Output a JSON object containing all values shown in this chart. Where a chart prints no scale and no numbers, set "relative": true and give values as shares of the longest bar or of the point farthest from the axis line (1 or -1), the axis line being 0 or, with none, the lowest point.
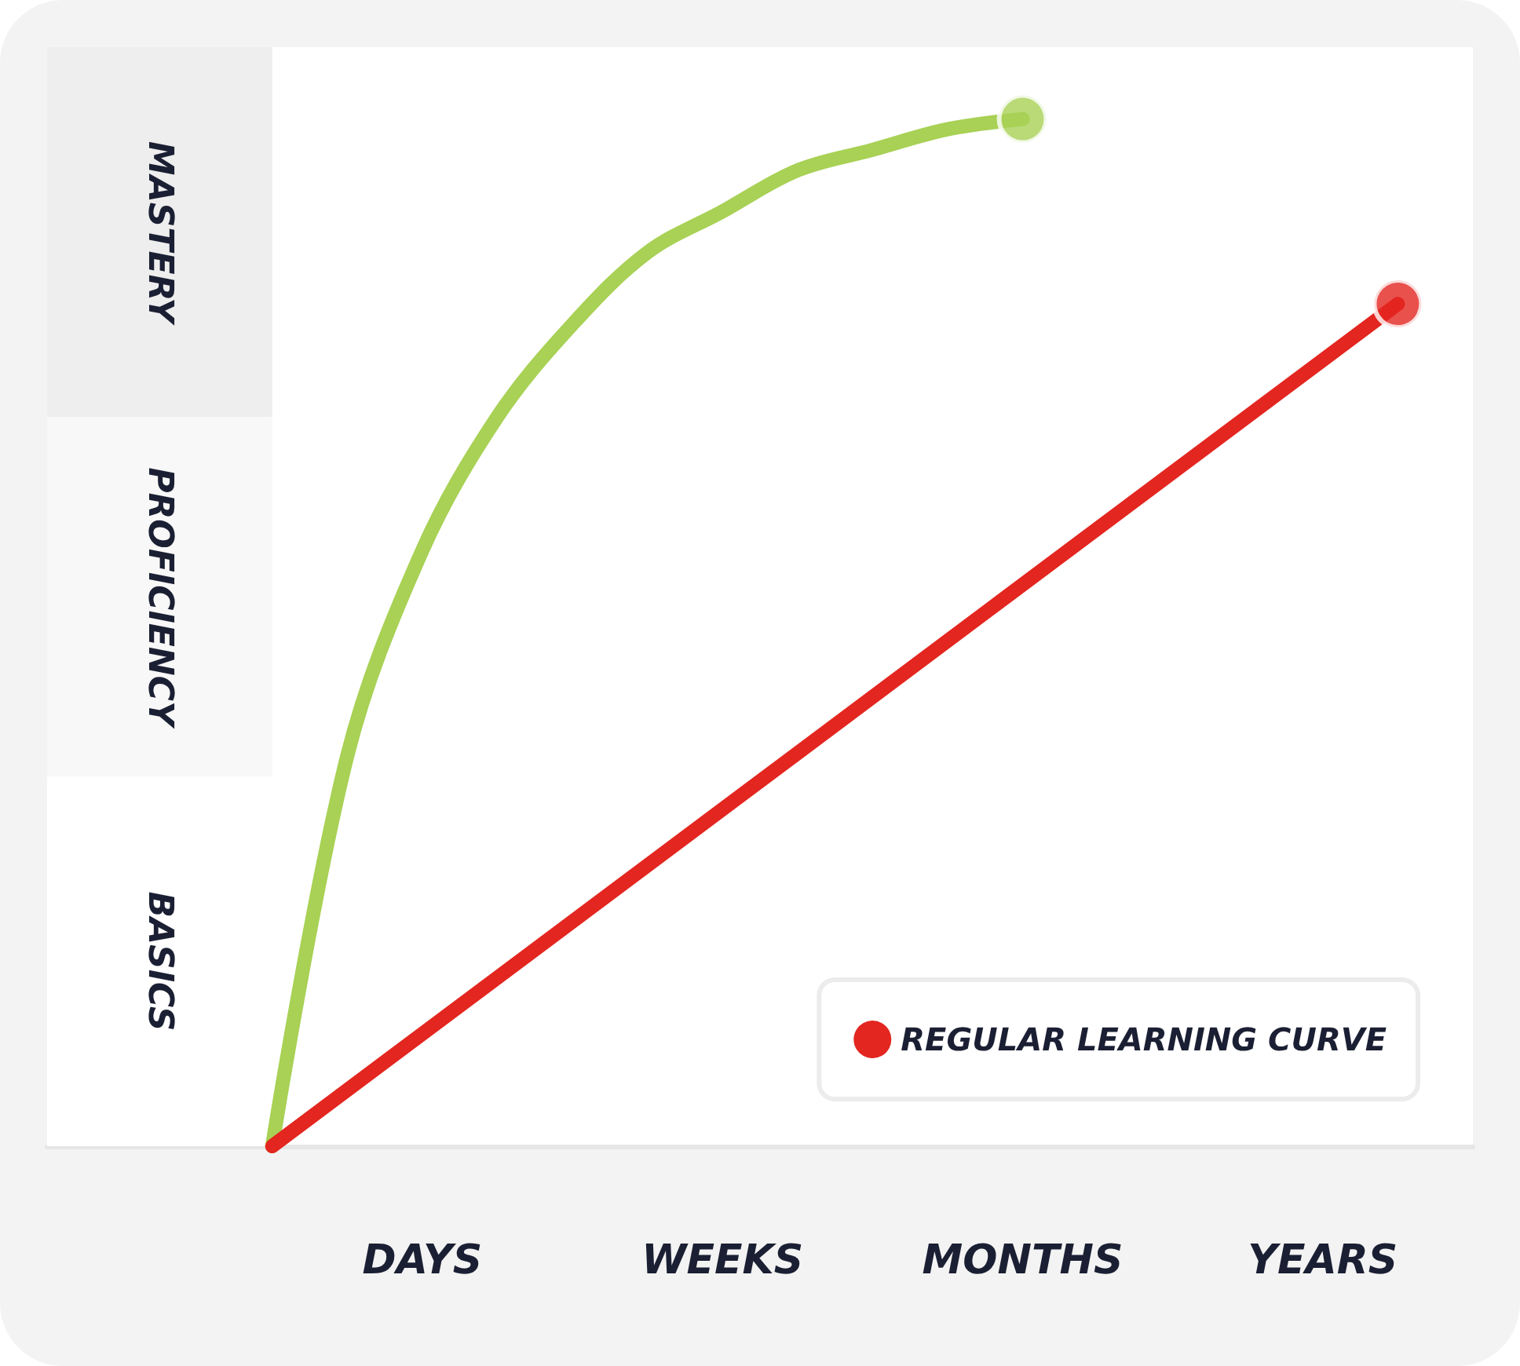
{
  "chart_data": {
    "type": "line",
    "relative": true,
    "categories": [
      null,
      null,
      null,
      null,
      null,
      "DAYS",
      null,
      null,
      null,
      "WEEKS",
      null,
      null,
      null,
      "MONTHS",
      null,
      null,
      null,
      "YEARS",
      null,
      null
    ],
    "series": [
      {
        "color": "#a8d155",
        "marker": "none",
        "values": [
          null,
          null,
          null,
          0,
          0.38,
          0.58,
          0.71,
          0.8,
          0.87,
          0.91,
          0.95,
          0.97,
          0.99,
          1,
          null,
          null,
          null,
          null,
          null,
          null
        ]
      },
      {
        "name": "REGULAR LEARNING CURVE",
        "color": "#e3261f",
        "marker": "none",
        "values": [
          null,
          null,
          null,
          0,
          null,
          null,
          null,
          null,
          null,
          null,
          null,
          null,
          null,
          null,
          null,
          null,
          null,
          null,
          0.82,
          null
        ]
      },
      {
        "type": "scatter",
        "color": "#a8d155",
        "marker": "circle",
        "values": [
          null,
          null,
          null,
          null,
          null,
          null,
          null,
          null,
          null,
          null,
          null,
          null,
          null,
          1,
          null,
          null,
          null,
          null,
          null,
          null
        ]
      },
      {
        "type": "scatter",
        "color": "#e3261f",
        "marker": "circle",
        "values": [
          null,
          null,
          null,
          null,
          null,
          null,
          null,
          null,
          null,
          null,
          null,
          null,
          null,
          null,
          null,
          null,
          null,
          null,
          0.82,
          null
        ]
      }
    ],
    "bands": [
      {
        "axis": "y",
        "from": 0,
        "to": 0.36,
        "label": "BASICS",
        "color": "#ffffff"
      },
      {
        "axis": "y",
        "from": 0.36,
        "to": 0.71,
        "label": "PROFICIENCY",
        "color": "#f8f8f8"
      },
      {
        "axis": "y",
        "from": 0.71,
        "to": 1.07,
        "label": "MASTERY",
        "color": "#eeeeee"
      }
    ],
    "legend": "bottom right"
  }
}
